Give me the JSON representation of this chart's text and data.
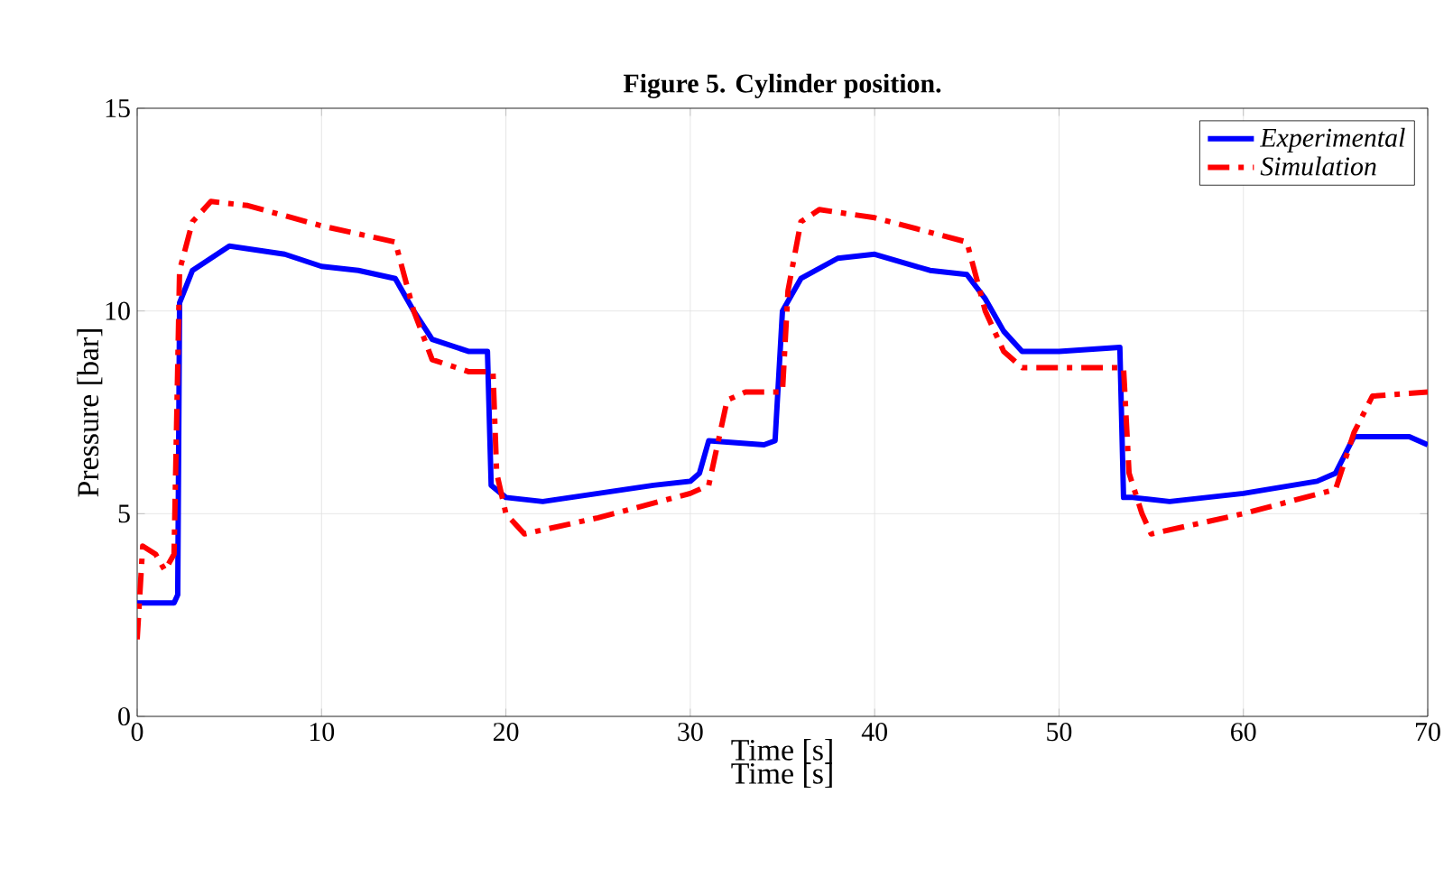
{
  "chart_data": {
    "type": "line",
    "title": "Figure 5. Cylinder position.",
    "xlabel": "Time [s]",
    "ylabel": "Pressure [bar]",
    "annotations": [
      "Time [s]"
    ],
    "xlim": [
      0,
      70
    ],
    "ylim": [
      0,
      15
    ],
    "xticks": [
      0,
      10,
      20,
      30,
      40,
      50,
      60,
      70
    ],
    "yticks": [
      0,
      5,
      10,
      15
    ],
    "grid": true,
    "legend": "top right",
    "series": [
      {
        "name": "Experimental",
        "color": "#0000ff",
        "line_style": "solid",
        "x": [
          0,
          1,
          2,
          2.2,
          2.3,
          3,
          5,
          8,
          10,
          12,
          14,
          15,
          16,
          18,
          19,
          19.2,
          20,
          22,
          25,
          28,
          30,
          30.5,
          31,
          34,
          34.6,
          35,
          36,
          38,
          40,
          43,
          45,
          46,
          47,
          48,
          50,
          53.3,
          53.5,
          54,
          56,
          60,
          64,
          65,
          66,
          69,
          70
        ],
        "values": [
          2.8,
          2.8,
          2.8,
          3,
          10.2,
          11,
          11.6,
          11.4,
          11.1,
          11,
          10.8,
          10,
          9.3,
          9,
          9,
          5.7,
          5.4,
          5.3,
          5.5,
          5.7,
          5.8,
          6,
          6.8,
          6.7,
          6.8,
          10,
          10.8,
          11.3,
          11.4,
          11,
          10.9,
          10.3,
          9.5,
          9,
          9,
          9.1,
          5.4,
          5.4,
          5.3,
          5.5,
          5.8,
          6,
          6.9,
          6.9,
          6.7
        ]
      },
      {
        "name": "Simulation",
        "color": "#ff0000",
        "line_style": "dashdot",
        "x": [
          0,
          0.3,
          1,
          1.5,
          2,
          2.3,
          3,
          4,
          6,
          10,
          14,
          15,
          16,
          18,
          19.3,
          19.5,
          20,
          21,
          25,
          30,
          31,
          32,
          33,
          35,
          35.3,
          36,
          37,
          40,
          45,
          46,
          47,
          48,
          53.5,
          53.8,
          54.5,
          55,
          60,
          65,
          66,
          67,
          70
        ],
        "values": [
          1.9,
          4.2,
          4,
          3.6,
          4,
          11,
          12.2,
          12.7,
          12.6,
          12.1,
          11.7,
          10,
          8.8,
          8.5,
          8.5,
          6,
          5,
          4.5,
          4.9,
          5.5,
          5.7,
          7.8,
          8,
          8,
          10.5,
          12.2,
          12.5,
          12.3,
          11.7,
          10,
          9,
          8.6,
          8.6,
          6,
          5,
          4.5,
          5,
          5.6,
          7,
          7.9,
          8
        ]
      }
    ]
  }
}
